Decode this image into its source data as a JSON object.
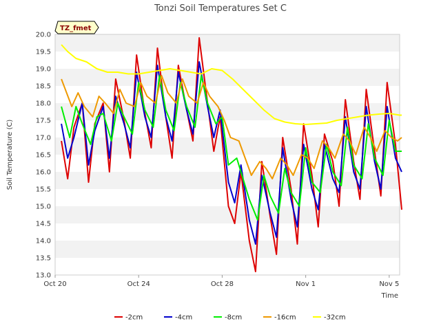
{
  "chart_data": {
    "type": "line",
    "title": "Tonzi Soil Temperatures Set C",
    "badge": "TZ_fmet",
    "xlabel": "Time",
    "ylabel": "Soil Temperature (C)",
    "x_unit": "days",
    "xlim": [
      0,
      16.5
    ],
    "ylim": [
      13.0,
      20.0
    ],
    "yticks": [
      13.0,
      13.5,
      14.0,
      14.5,
      15.0,
      15.5,
      16.0,
      16.5,
      17.0,
      17.5,
      18.0,
      18.5,
      19.0,
      19.5,
      20.0
    ],
    "xticks": [
      {
        "x": 0,
        "label": "Oct 20"
      },
      {
        "x": 4,
        "label": "Oct 24"
      },
      {
        "x": 8,
        "label": "Oct 28"
      },
      {
        "x": 12,
        "label": "Nov 1"
      },
      {
        "x": 16,
        "label": "Nov 5"
      }
    ],
    "grid": "horizontal bands",
    "legend_position": "bottom",
    "series": [
      {
        "name": "-2cm",
        "color": "#dd0000",
        "x": [
          0.3,
          0.6,
          0.9,
          1.3,
          1.6,
          1.9,
          2.3,
          2.6,
          2.9,
          3.3,
          3.6,
          3.9,
          4.3,
          4.6,
          4.9,
          5.3,
          5.6,
          5.9,
          6.3,
          6.6,
          6.9,
          7.3,
          7.6,
          7.9,
          8.3,
          8.6,
          8.9,
          9.3,
          9.6,
          9.9,
          10.3,
          10.6,
          10.9,
          11.3,
          11.6,
          11.9,
          12.3,
          12.6,
          12.9,
          13.3,
          13.6,
          13.9,
          14.3,
          14.6,
          14.9,
          15.3,
          15.6,
          15.9,
          16.3,
          16.6
        ],
        "y": [
          16.9,
          15.8,
          17.3,
          18.0,
          15.7,
          17.4,
          18.0,
          16.0,
          18.7,
          17.5,
          16.4,
          19.4,
          17.7,
          16.7,
          19.6,
          17.6,
          16.4,
          19.1,
          17.8,
          16.9,
          19.9,
          18.0,
          16.6,
          17.6,
          15.0,
          14.5,
          16.0,
          14.0,
          13.1,
          16.3,
          14.7,
          13.6,
          17.0,
          15.5,
          13.9,
          17.4,
          15.9,
          14.4,
          17.1,
          16.3,
          15.0,
          18.1,
          16.3,
          15.2,
          18.4,
          16.6,
          15.3,
          18.6,
          16.8,
          14.9
        ]
      },
      {
        "name": "-4cm",
        "color": "#0000cc",
        "x": [
          0.3,
          0.6,
          0.9,
          1.3,
          1.6,
          1.9,
          2.3,
          2.6,
          2.9,
          3.3,
          3.6,
          3.9,
          4.3,
          4.6,
          4.9,
          5.3,
          5.6,
          5.9,
          6.3,
          6.6,
          6.9,
          7.3,
          7.6,
          7.9,
          8.3,
          8.6,
          8.9,
          9.3,
          9.6,
          9.9,
          10.3,
          10.6,
          10.9,
          11.3,
          11.6,
          11.9,
          12.3,
          12.6,
          12.9,
          13.3,
          13.6,
          13.9,
          14.3,
          14.6,
          14.9,
          15.3,
          15.6,
          15.9,
          16.3,
          16.6
        ],
        "y": [
          17.4,
          16.4,
          17.0,
          18.0,
          16.2,
          17.2,
          17.9,
          16.4,
          18.2,
          17.4,
          16.7,
          18.9,
          17.6,
          17.0,
          19.1,
          17.6,
          16.9,
          18.9,
          17.8,
          17.1,
          19.2,
          17.9,
          17.0,
          17.8,
          15.7,
          15.1,
          16.2,
          14.6,
          13.9,
          15.9,
          14.8,
          14.1,
          16.7,
          15.2,
          14.4,
          16.8,
          15.5,
          14.9,
          16.8,
          15.8,
          15.4,
          17.6,
          16.0,
          15.5,
          17.9,
          16.3,
          15.5,
          17.9,
          16.4,
          16.0
        ]
      },
      {
        "name": "-8cm",
        "color": "#00ee00",
        "x": [
          0.3,
          0.7,
          1.0,
          1.3,
          1.7,
          2.0,
          2.3,
          2.7,
          3.0,
          3.3,
          3.7,
          4.0,
          4.3,
          4.7,
          5.0,
          5.3,
          5.7,
          6.0,
          6.3,
          6.7,
          7.0,
          7.3,
          7.7,
          8.0,
          8.3,
          8.7,
          9.0,
          9.3,
          9.7,
          10.0,
          10.3,
          10.7,
          11.0,
          11.3,
          11.7,
          12.0,
          12.3,
          12.7,
          13.0,
          13.3,
          13.7,
          14.0,
          14.3,
          14.7,
          15.0,
          15.3,
          15.7,
          16.0,
          16.3,
          16.6
        ],
        "y": [
          17.9,
          17.0,
          17.9,
          17.4,
          16.8,
          17.6,
          17.7,
          16.9,
          18.0,
          17.6,
          17.1,
          18.6,
          17.8,
          17.3,
          18.8,
          17.8,
          17.2,
          18.6,
          17.9,
          17.3,
          18.8,
          18.0,
          17.4,
          17.6,
          16.2,
          16.4,
          15.8,
          15.2,
          14.6,
          15.9,
          15.3,
          14.8,
          16.1,
          15.4,
          15.0,
          16.7,
          15.7,
          15.4,
          16.8,
          16.0,
          15.6,
          17.3,
          16.2,
          15.8,
          17.4,
          16.4,
          15.9,
          17.5,
          16.6,
          16.6
        ]
      },
      {
        "name": "-16cm",
        "color": "#ee9900",
        "x": [
          0.3,
          0.8,
          1.1,
          1.4,
          1.8,
          2.1,
          2.4,
          2.8,
          3.1,
          3.4,
          3.8,
          4.1,
          4.4,
          4.8,
          5.1,
          5.4,
          5.8,
          6.1,
          6.4,
          6.8,
          7.1,
          7.4,
          7.8,
          8.1,
          8.4,
          8.8,
          9.1,
          9.4,
          9.8,
          10.1,
          10.4,
          10.8,
          11.1,
          11.4,
          11.8,
          12.1,
          12.4,
          12.8,
          13.1,
          13.4,
          13.8,
          14.1,
          14.4,
          14.8,
          15.1,
          15.4,
          15.8,
          16.1,
          16.4,
          16.6
        ],
        "y": [
          18.7,
          17.9,
          18.3,
          17.9,
          17.6,
          18.2,
          18.0,
          17.7,
          18.4,
          18.0,
          17.9,
          18.6,
          18.2,
          18.0,
          18.8,
          18.3,
          18.0,
          18.7,
          18.2,
          18.0,
          18.6,
          18.2,
          17.9,
          17.5,
          17.0,
          16.9,
          16.4,
          15.9,
          16.3,
          16.1,
          15.8,
          16.4,
          16.2,
          15.9,
          16.5,
          16.4,
          16.1,
          16.9,
          16.7,
          16.4,
          17.1,
          16.9,
          16.5,
          17.3,
          17.0,
          16.6,
          17.2,
          17.0,
          16.9,
          17.0
        ]
      },
      {
        "name": "-32cm",
        "color": "#ffff00",
        "x": [
          0.3,
          0.6,
          1.0,
          1.5,
          2.0,
          2.5,
          3.0,
          3.5,
          4.0,
          4.5,
          5.0,
          5.5,
          6.0,
          6.5,
          7.0,
          7.5,
          8.0,
          8.5,
          9.0,
          9.5,
          10.0,
          10.5,
          11.0,
          11.5,
          12.0,
          12.5,
          13.0,
          13.5,
          14.0,
          14.5,
          15.0,
          15.5,
          16.0,
          16.5,
          16.6
        ],
        "y": [
          19.7,
          19.5,
          19.3,
          19.2,
          19.0,
          18.9,
          18.9,
          18.85,
          18.85,
          18.9,
          18.95,
          19.0,
          18.95,
          18.9,
          18.85,
          19.0,
          18.95,
          18.7,
          18.4,
          18.1,
          17.8,
          17.55,
          17.45,
          17.4,
          17.38,
          17.4,
          17.42,
          17.5,
          17.55,
          17.6,
          17.65,
          17.68,
          17.7,
          17.65,
          17.65
        ]
      }
    ]
  }
}
